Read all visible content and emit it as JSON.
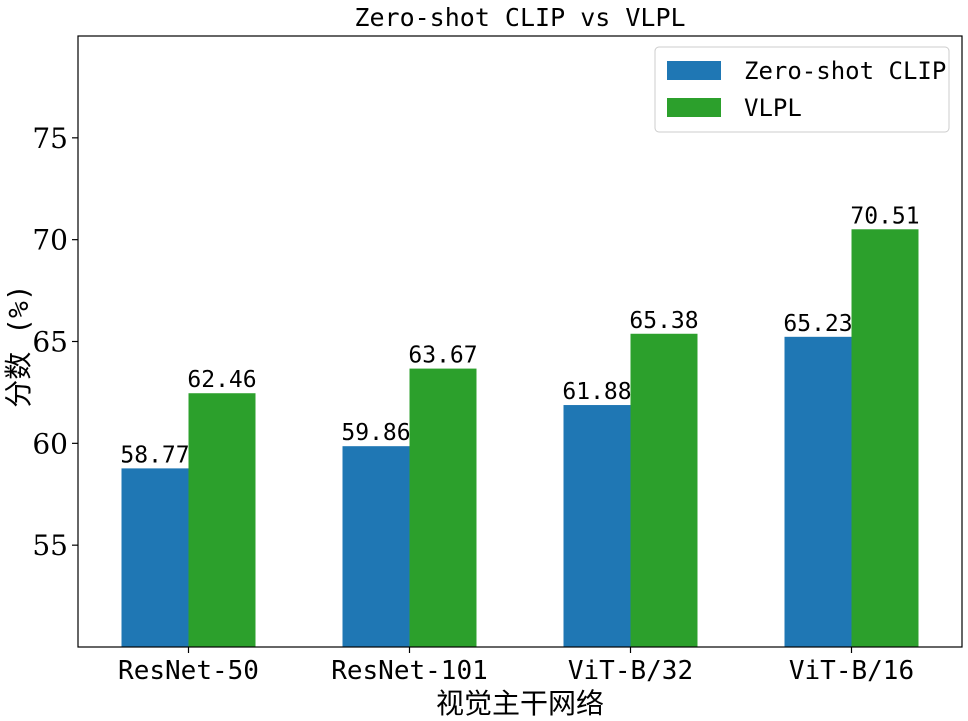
{
  "chart_data": {
    "type": "bar",
    "title": "Zero-shot CLIP  vs  VLPL",
    "xlabel": "视觉主干网络",
    "ylabel": "分数 (%)",
    "categories": [
      "ResNet-50",
      "ResNet-101",
      "ViT-B/32",
      "ViT-B/16"
    ],
    "series": [
      {
        "name": "Zero-shot CLIP",
        "color": "#1f77b4",
        "values": [
          58.77,
          59.86,
          61.88,
          65.23
        ],
        "labels": [
          "58.77",
          "59.86",
          "61.88",
          "65.23"
        ]
      },
      {
        "name": "VLPL",
        "color": "#2ca02c",
        "values": [
          62.46,
          63.67,
          65.38,
          70.51
        ],
        "labels": [
          "62.46",
          "63.67",
          "65.38",
          "70.51"
        ]
      }
    ],
    "ylim": [
      50,
      80
    ],
    "yticks": [
      55,
      60,
      65,
      70,
      75
    ],
    "ytick_labels": [
      "55",
      "60",
      "65",
      "70",
      "75"
    ],
    "grid": false,
    "legend_position": "top-right"
  }
}
